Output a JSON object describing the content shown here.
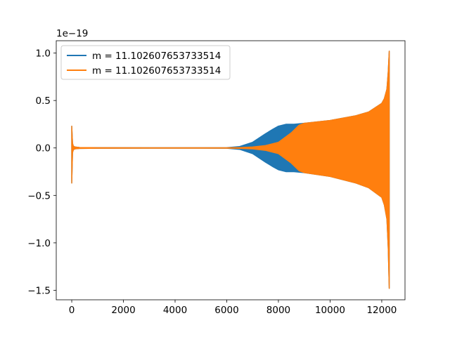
{
  "chart_data": {
    "type": "line",
    "title": "",
    "xlabel": "",
    "ylabel": "",
    "y_offset_label": "1e−19",
    "xlim": [
      -600,
      12900
    ],
    "ylim": [
      -1.6,
      1.13
    ],
    "x_ticks": [
      0,
      2000,
      4000,
      6000,
      8000,
      10000,
      12000
    ],
    "x_tick_labels": [
      "0",
      "2000",
      "4000",
      "6000",
      "8000",
      "10000",
      "12000"
    ],
    "y_ticks": [
      -1.5,
      -1.0,
      -0.5,
      0.0,
      0.5,
      1.0
    ],
    "y_tick_labels": [
      "−1.5",
      "−1.0",
      "−0.5",
      "0.0",
      "0.5",
      "1.0"
    ],
    "grid": false,
    "legend_position": "top-left",
    "series": [
      {
        "name": "m = 11.102607653733514",
        "color": "#1f77b4",
        "envelope": {
          "x": [
            0,
            30,
            60,
            120,
            300,
            1000,
            3000,
            5000,
            6000,
            6500,
            7000,
            7500,
            7800,
            8000,
            8300,
            8600,
            9000,
            10000,
            11000,
            11500,
            12000,
            12100,
            12200,
            12250,
            12290
          ],
          "upper": [
            0.23,
            0.05,
            0.02,
            0.01,
            0.005,
            0.003,
            0.002,
            0.002,
            0.003,
            0.015,
            0.06,
            0.15,
            0.2,
            0.23,
            0.25,
            0.25,
            0.26,
            0.29,
            0.34,
            0.38,
            0.47,
            0.52,
            0.62,
            0.8,
            1.02
          ],
          "lower": [
            -0.37,
            -0.05,
            -0.02,
            -0.01,
            -0.005,
            -0.003,
            -0.002,
            -0.002,
            -0.003,
            -0.015,
            -0.06,
            -0.15,
            -0.2,
            -0.23,
            -0.25,
            -0.25,
            -0.26,
            -0.3,
            -0.37,
            -0.42,
            -0.52,
            -0.6,
            -0.75,
            -1.05,
            -1.48
          ]
        }
      },
      {
        "name": "m = 11.102607653733514",
        "color": "#ff7f0e",
        "envelope": {
          "x": [
            0,
            30,
            60,
            120,
            300,
            1000,
            3000,
            5000,
            6000,
            6500,
            7000,
            7500,
            8000,
            8500,
            8800,
            9000,
            10000,
            11000,
            11500,
            12000,
            12100,
            12200,
            12250,
            12290
          ],
          "upper": [
            0.23,
            0.05,
            0.02,
            0.01,
            0.005,
            0.003,
            0.002,
            0.002,
            0.002,
            0.004,
            0.01,
            0.025,
            0.06,
            0.16,
            0.24,
            0.26,
            0.29,
            0.34,
            0.38,
            0.47,
            0.52,
            0.62,
            0.8,
            1.02
          ],
          "lower": [
            -0.37,
            -0.05,
            -0.02,
            -0.01,
            -0.005,
            -0.003,
            -0.002,
            -0.002,
            -0.002,
            -0.004,
            -0.01,
            -0.025,
            -0.06,
            -0.16,
            -0.24,
            -0.26,
            -0.3,
            -0.37,
            -0.42,
            -0.52,
            -0.6,
            -0.75,
            -1.05,
            -1.48
          ]
        }
      }
    ]
  }
}
